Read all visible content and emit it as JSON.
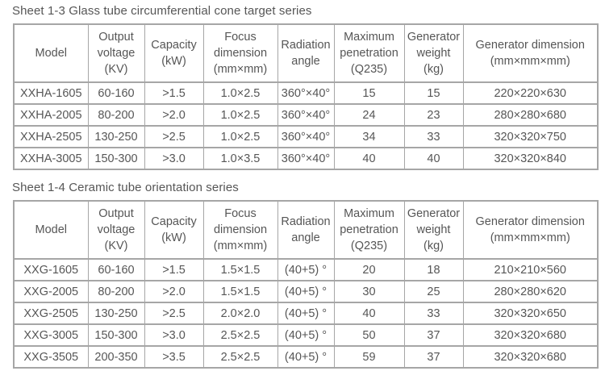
{
  "colors": {
    "background": "#ffffff",
    "text": "#565656",
    "border": "#a6a6a6"
  },
  "tables": [
    {
      "title": "Sheet 1-3 Glass tube circumferential cone target series",
      "headers": [
        {
          "lines": [
            "Model"
          ]
        },
        {
          "lines": [
            "Output",
            "voltage",
            "(KV)"
          ]
        },
        {
          "lines": [
            "Capacity",
            "(kW)"
          ]
        },
        {
          "lines": [
            "Focus",
            "dimension",
            "(mm×mm)"
          ]
        },
        {
          "lines": [
            "Radiation",
            "angle"
          ]
        },
        {
          "lines": [
            "Maximum",
            "penetration",
            "(Q235)"
          ]
        },
        {
          "lines": [
            "Generator",
            "weight",
            "(kg)"
          ]
        },
        {
          "lines": [
            "Generator dimension",
            "(mm×mm×mm)"
          ]
        }
      ],
      "rows": [
        [
          "XXHA-1605",
          "60-160",
          ">1.5",
          "1.0×2.5",
          "360°×40°",
          "15",
          "15",
          "220×220×630"
        ],
        [
          "XXHA-2005",
          "80-200",
          ">2.0",
          "1.0×2.5",
          "360°×40°",
          "24",
          "23",
          "280×280×680"
        ],
        [
          "XXHA-2505",
          "130-250",
          ">2.5",
          "1.0×2.5",
          "360°×40°",
          "34",
          "33",
          "320×320×750"
        ],
        [
          "XXHA-3005",
          "150-300",
          ">3.0",
          "1.0×3.5",
          "360°×40°",
          "40",
          "40",
          "320×320×840"
        ]
      ]
    },
    {
      "title": "Sheet 1-4 Ceramic tube orientation series",
      "headers": [
        {
          "lines": [
            "Model"
          ]
        },
        {
          "lines": [
            "Output",
            "voltage",
            "(KV)"
          ]
        },
        {
          "lines": [
            "Capacity",
            "(kW)"
          ]
        },
        {
          "lines": [
            "Focus",
            "dimension",
            "(mm×mm)"
          ]
        },
        {
          "lines": [
            "Radiation",
            "angle"
          ]
        },
        {
          "lines": [
            "Maximum",
            "penetration",
            "(Q235)"
          ]
        },
        {
          "lines": [
            "Generator",
            "weight",
            "(kg)"
          ]
        },
        {
          "lines": [
            "Generator dimension",
            "(mm×mm×mm)"
          ]
        }
      ],
      "rows": [
        [
          "XXG-1605",
          "60-160",
          ">1.5",
          "1.5×1.5",
          "(40+5) °",
          "20",
          "18",
          "210×210×560"
        ],
        [
          "XXG-2005",
          "80-200",
          ">2.0",
          "1.5×1.5",
          "(40+5) °",
          "30",
          "25",
          "280×280×620"
        ],
        [
          "XXG-2505",
          "130-250",
          ">2.5",
          "2.0×2.0",
          "(40+5) °",
          "40",
          "33",
          "320×320×650"
        ],
        [
          "XXG-3005",
          "150-300",
          ">3.0",
          "2.5×2.5",
          "(40+5) °",
          "50",
          "37",
          "320×320×680"
        ],
        [
          "XXG-3505",
          "200-350",
          ">3.5",
          "2.5×2.5",
          "(40+5) °",
          "59",
          "37",
          "320×320×680"
        ]
      ]
    }
  ]
}
